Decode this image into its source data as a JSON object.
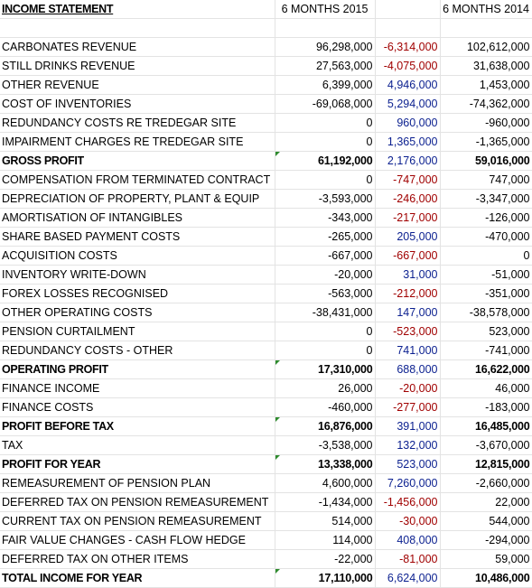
{
  "header": {
    "title": "INCOME STATEMENT",
    "col_2015": "6 MONTHS 2015",
    "col_2014": "6 MONTHS 2014"
  },
  "rows": [
    {
      "label": "CARBONATES REVENUE",
      "v2015": "96,298,000",
      "diff": "-6,314,000",
      "v2014": "102,612,000",
      "bold": false
    },
    {
      "label": "STILL DRINKS REVENUE",
      "v2015": "27,563,000",
      "diff": "-4,075,000",
      "v2014": "31,638,000",
      "bold": false
    },
    {
      "label": "OTHER REVENUE",
      "v2015": "6,399,000",
      "diff": "4,946,000",
      "v2014": "1,453,000",
      "bold": false
    },
    {
      "label": "COST OF INVENTORIES",
      "v2015": "-69,068,000",
      "diff": "5,294,000",
      "v2014": "-74,362,000",
      "bold": false
    },
    {
      "label": "REDUNDANCY COSTS RE TREDEGAR SITE",
      "v2015": "0",
      "diff": "960,000",
      "v2014": "-960,000",
      "bold": false
    },
    {
      "label": "IMPAIRMENT CHARGES RE TREDEGAR SITE",
      "v2015": "0",
      "diff": "1,365,000",
      "v2014": "-1,365,000",
      "bold": false
    },
    {
      "label": "GROSS PROFIT",
      "v2015": "61,192,000",
      "diff": "2,176,000",
      "v2014": "59,016,000",
      "bold": true
    },
    {
      "label": "COMPENSATION FROM TERMINATED CONTRACT",
      "v2015": "0",
      "diff": "-747,000",
      "v2014": "747,000",
      "bold": false
    },
    {
      "label": "DEPRECIATION OF PROPERTY, PLANT & EQUIP",
      "v2015": "-3,593,000",
      "diff": "-246,000",
      "v2014": "-3,347,000",
      "bold": false
    },
    {
      "label": "AMORTISATION OF INTANGIBLES",
      "v2015": "-343,000",
      "diff": "-217,000",
      "v2014": "-126,000",
      "bold": false
    },
    {
      "label": "SHARE BASED PAYMENT COSTS",
      "v2015": "-265,000",
      "diff": "205,000",
      "v2014": "-470,000",
      "bold": false
    },
    {
      "label": "ACQUISITION COSTS",
      "v2015": "-667,000",
      "diff": "-667,000",
      "v2014": "0",
      "bold": false
    },
    {
      "label": "INVENTORY WRITE-DOWN",
      "v2015": "-20,000",
      "diff": "31,000",
      "v2014": "-51,000",
      "bold": false
    },
    {
      "label": "FOREX LOSSES RECOGNISED",
      "v2015": "-563,000",
      "diff": "-212,000",
      "v2014": "-351,000",
      "bold": false
    },
    {
      "label": "OTHER OPERATING COSTS",
      "v2015": "-38,431,000",
      "diff": "147,000",
      "v2014": "-38,578,000",
      "bold": false
    },
    {
      "label": "PENSION CURTAILMENT",
      "v2015": "0",
      "diff": "-523,000",
      "v2014": "523,000",
      "bold": false
    },
    {
      "label": "REDUNDANCY COSTS - OTHER",
      "v2015": "0",
      "diff": "741,000",
      "v2014": "-741,000",
      "bold": false
    },
    {
      "label": "OPERATING PROFIT",
      "v2015": "17,310,000",
      "diff": "688,000",
      "v2014": "16,622,000",
      "bold": true
    },
    {
      "label": "FINANCE INCOME",
      "v2015": "26,000",
      "diff": "-20,000",
      "v2014": "46,000",
      "bold": false
    },
    {
      "label": "FINANCE COSTS",
      "v2015": "-460,000",
      "diff": "-277,000",
      "v2014": "-183,000",
      "bold": false
    },
    {
      "label": "PROFIT BEFORE TAX",
      "v2015": "16,876,000",
      "diff": "391,000",
      "v2014": "16,485,000",
      "bold": true
    },
    {
      "label": "TAX",
      "v2015": "-3,538,000",
      "diff": "132,000",
      "v2014": "-3,670,000",
      "bold": false
    },
    {
      "label": "PROFIT FOR YEAR",
      "v2015": "13,338,000",
      "diff": "523,000",
      "v2014": "12,815,000",
      "bold": true
    },
    {
      "label": "REMEASUREMENT OF PENSION PLAN",
      "v2015": "4,600,000",
      "diff": "7,260,000",
      "v2014": "-2,660,000",
      "bold": false
    },
    {
      "label": "DEFERRED TAX ON PENSION REMEASUREMENT",
      "v2015": "-1,434,000",
      "diff": "-1,456,000",
      "v2014": "22,000",
      "bold": false
    },
    {
      "label": "CURRENT TAX ON PENSION REMEASUREMENT",
      "v2015": "514,000",
      "diff": "-30,000",
      "v2014": "544,000",
      "bold": false
    },
    {
      "label": "FAIR VALUE CHANGES - CASH FLOW HEDGE",
      "v2015": "114,000",
      "diff": "408,000",
      "v2014": "-294,000",
      "bold": false
    },
    {
      "label": "DEFERRED TAX ON OTHER ITEMS",
      "v2015": "-22,000",
      "diff": "-81,000",
      "v2014": "59,000",
      "bold": false
    },
    {
      "label": "TOTAL INCOME FOR YEAR",
      "v2015": "17,110,000",
      "diff": "6,624,000",
      "v2014": "10,486,000",
      "bold": true
    }
  ],
  "colors": {
    "negative_diff": "#a00000",
    "positive_diff": "#0a1f8f",
    "cell_marker": "#2e8b2e"
  }
}
